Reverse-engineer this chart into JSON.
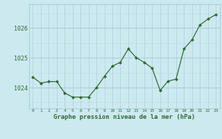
{
  "x": [
    0,
    1,
    2,
    3,
    4,
    5,
    6,
    7,
    8,
    9,
    10,
    11,
    12,
    13,
    14,
    15,
    16,
    17,
    18,
    19,
    20,
    21,
    22,
    23
  ],
  "y": [
    1024.35,
    1024.15,
    1024.2,
    1024.2,
    1023.82,
    1023.68,
    1023.68,
    1023.68,
    1024.0,
    1024.38,
    1024.72,
    1024.85,
    1025.3,
    1025.0,
    1024.85,
    1024.65,
    1023.9,
    1024.22,
    1024.28,
    1025.3,
    1025.6,
    1026.1,
    1026.3,
    1026.45
  ],
  "line_color": "#2d6a2d",
  "marker_color": "#2d6a2d",
  "bg_color": "#cce9f0",
  "grid_major_color": "#aacfda",
  "grid_minor_color": "#c0dde6",
  "xlabel": "Graphe pression niveau de la mer (hPa)",
  "xlabel_color": "#2d6a2d",
  "tick_color": "#2d6a2d",
  "ylim": [
    1023.3,
    1026.8
  ],
  "yticks": [
    1024,
    1025,
    1026
  ],
  "xlim": [
    -0.5,
    23.5
  ],
  "xtick_labels": [
    "0",
    "1",
    "2",
    "3",
    "4",
    "5",
    "6",
    "7",
    "8",
    "9",
    "10",
    "11",
    "12",
    "13",
    "14",
    "15",
    "16",
    "17",
    "18",
    "19",
    "20",
    "21",
    "22",
    "23"
  ]
}
